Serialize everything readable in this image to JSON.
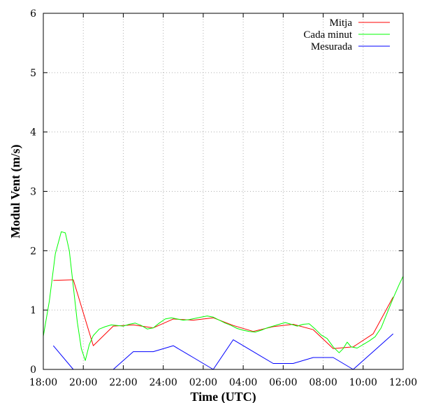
{
  "chart_data": {
    "type": "line",
    "title": "",
    "xlabel": "Time (UTC)",
    "ylabel": "Modul Vent (m/s)",
    "xlim": [
      18,
      36
    ],
    "ylim": [
      0,
      6
    ],
    "xticks": [
      {
        "x": 18,
        "label": "18:00"
      },
      {
        "x": 20,
        "label": "20:00"
      },
      {
        "x": 22,
        "label": "22:00"
      },
      {
        "x": 24,
        "label": "24:00"
      },
      {
        "x": 26,
        "label": "02:00"
      },
      {
        "x": 28,
        "label": "04:00"
      },
      {
        "x": 30,
        "label": "06:00"
      },
      {
        "x": 32,
        "label": "08:00"
      },
      {
        "x": 34,
        "label": "10:00"
      },
      {
        "x": 36,
        "label": "12:00"
      }
    ],
    "yticks": [
      0,
      1,
      2,
      3,
      4,
      5,
      6
    ],
    "grid": true,
    "legend_position": "top-right",
    "series": [
      {
        "name": "Mitja",
        "color": "#ff0000",
        "x": [
          18.5,
          19.5,
          20.5,
          21.5,
          22.5,
          23.5,
          24.5,
          25.5,
          26.5,
          27.5,
          28.5,
          29.5,
          30.5,
          31.5,
          32.5,
          33.5,
          34.5,
          35.5
        ],
        "y": [
          1.5,
          1.51,
          0.4,
          0.73,
          0.75,
          0.7,
          0.85,
          0.83,
          0.87,
          0.74,
          0.64,
          0.72,
          0.76,
          0.67,
          0.35,
          0.38,
          0.6,
          1.22
        ]
      },
      {
        "name": "Cada minut",
        "color": "#00ff00",
        "x": [
          18.0,
          18.3,
          18.6,
          18.9,
          19.1,
          19.3,
          19.5,
          19.7,
          19.9,
          20.1,
          20.3,
          20.5,
          20.8,
          21.1,
          21.4,
          21.7,
          22.0,
          22.3,
          22.6,
          22.9,
          23.2,
          23.5,
          23.8,
          24.1,
          24.4,
          24.7,
          25.0,
          25.3,
          25.6,
          25.9,
          26.2,
          26.5,
          26.8,
          27.1,
          27.4,
          27.7,
          28.0,
          28.3,
          28.6,
          28.9,
          29.2,
          29.5,
          29.8,
          30.1,
          30.4,
          30.7,
          31.0,
          31.3,
          31.6,
          31.9,
          32.2,
          32.5,
          32.8,
          33.0,
          33.2,
          33.4,
          33.7,
          34.0,
          34.3,
          34.6,
          34.9,
          35.2,
          35.5,
          35.8,
          36.0
        ],
        "y": [
          0.56,
          1.15,
          1.95,
          2.32,
          2.3,
          2.0,
          1.4,
          0.8,
          0.35,
          0.15,
          0.42,
          0.57,
          0.68,
          0.72,
          0.75,
          0.74,
          0.73,
          0.76,
          0.78,
          0.74,
          0.68,
          0.7,
          0.78,
          0.85,
          0.87,
          0.85,
          0.83,
          0.84,
          0.86,
          0.88,
          0.9,
          0.88,
          0.83,
          0.78,
          0.74,
          0.69,
          0.66,
          0.64,
          0.63,
          0.66,
          0.7,
          0.73,
          0.76,
          0.79,
          0.76,
          0.73,
          0.76,
          0.77,
          0.68,
          0.58,
          0.52,
          0.38,
          0.28,
          0.35,
          0.46,
          0.38,
          0.36,
          0.42,
          0.48,
          0.55,
          0.7,
          0.95,
          1.2,
          1.43,
          1.57
        ]
      },
      {
        "name": "Mesurada",
        "color": "#0000ff",
        "x": [
          18.5,
          19.5,
          20.5,
          21.5,
          22.5,
          23.5,
          24.5,
          25.5,
          26.5,
          27.5,
          28.5,
          29.5,
          30.5,
          31.5,
          32.5,
          33.5,
          34.5,
          35.5
        ],
        "y": [
          0.4,
          0.0,
          0.0,
          0.0,
          0.3,
          0.3,
          0.4,
          0.2,
          0.0,
          0.5,
          0.3,
          0.1,
          0.1,
          0.2,
          0.2,
          0.0,
          0.3,
          0.6
        ]
      }
    ]
  }
}
